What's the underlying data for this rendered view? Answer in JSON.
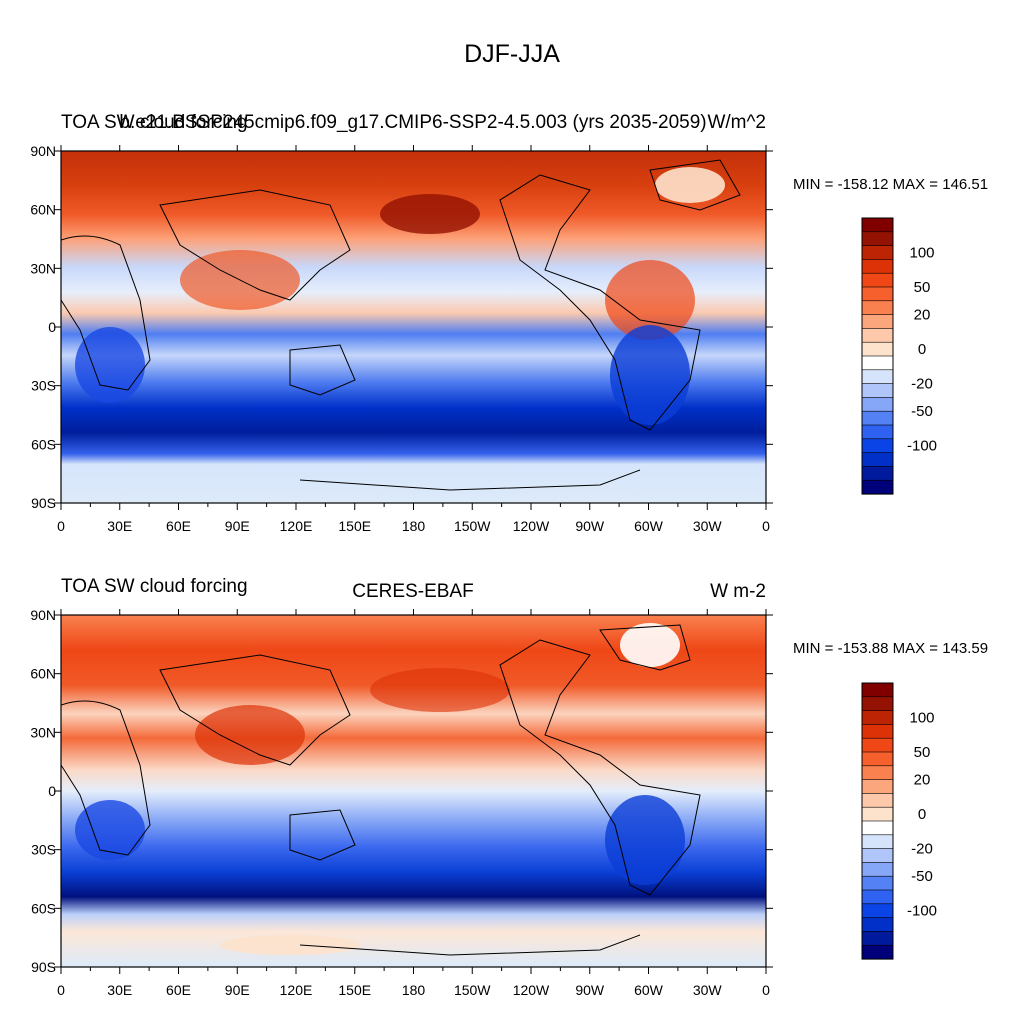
{
  "figure": {
    "title": "DJF-JJA"
  },
  "chart_data": [
    {
      "type": "heatmap",
      "title_left": "TOA SW cloud forcing",
      "title_center": "b.e21.BSSP245cmip6.f09_g17.CMIP6-SSP2-4.5.003 (yrs 2035-2059)",
      "units": "W/m^2",
      "stats": "MIN = -158.12 MAX = 146.51",
      "x_tick_labels": [
        "0",
        "30E",
        "60E",
        "90E",
        "120E",
        "150E",
        "180",
        "150W",
        "120W",
        "90W",
        "60W",
        "30W",
        "0"
      ],
      "y_tick_labels": [
        "90N",
        "60N",
        "30N",
        "0",
        "30S",
        "60S",
        "90S"
      ],
      "colorbar_labels": [
        "100",
        "50",
        "20",
        "0",
        "-20",
        "-50",
        "-100"
      ],
      "colorbar_levels": [
        -140,
        -120,
        -100,
        -80,
        -60,
        -50,
        -40,
        -30,
        -20,
        -10,
        0,
        10,
        20,
        30,
        40,
        50,
        60,
        80,
        100,
        120,
        140
      ],
      "min": -158.12,
      "max": 146.51,
      "ylim": [
        -90,
        90
      ],
      "xlim": [
        0,
        360
      ]
    },
    {
      "type": "heatmap",
      "title_left": "TOA SW cloud forcing",
      "title_center": "CERES-EBAF",
      "units": "W m-2",
      "stats": "MIN = -153.88 MAX = 143.59",
      "x_tick_labels": [
        "0",
        "30E",
        "60E",
        "90E",
        "120E",
        "150E",
        "180",
        "150W",
        "120W",
        "90W",
        "60W",
        "30W",
        "0"
      ],
      "y_tick_labels": [
        "90N",
        "60N",
        "30N",
        "0",
        "30S",
        "60S",
        "90S"
      ],
      "colorbar_labels": [
        "100",
        "50",
        "20",
        "0",
        "-20",
        "-50",
        "-100"
      ],
      "colorbar_levels": [
        -140,
        -120,
        -100,
        -80,
        -60,
        -50,
        -40,
        -30,
        -20,
        -10,
        0,
        10,
        20,
        30,
        40,
        50,
        60,
        80,
        100,
        120,
        140
      ],
      "min": -153.88,
      "max": 143.59,
      "ylim": [
        -90,
        90
      ],
      "xlim": [
        0,
        360
      ]
    }
  ],
  "colors": {
    "palette": [
      "#00007a",
      "#001a9e",
      "#0030c8",
      "#0b44e6",
      "#2f62f0",
      "#5482f5",
      "#86a6f7",
      "#b0c6fa",
      "#d6e4fb",
      "#ffffff",
      "#fde2cc",
      "#fdc9aa",
      "#fca67d",
      "#f98150",
      "#f5602c",
      "#ef4716",
      "#dd3207",
      "#bd2404",
      "#941201",
      "#800000"
    ]
  }
}
